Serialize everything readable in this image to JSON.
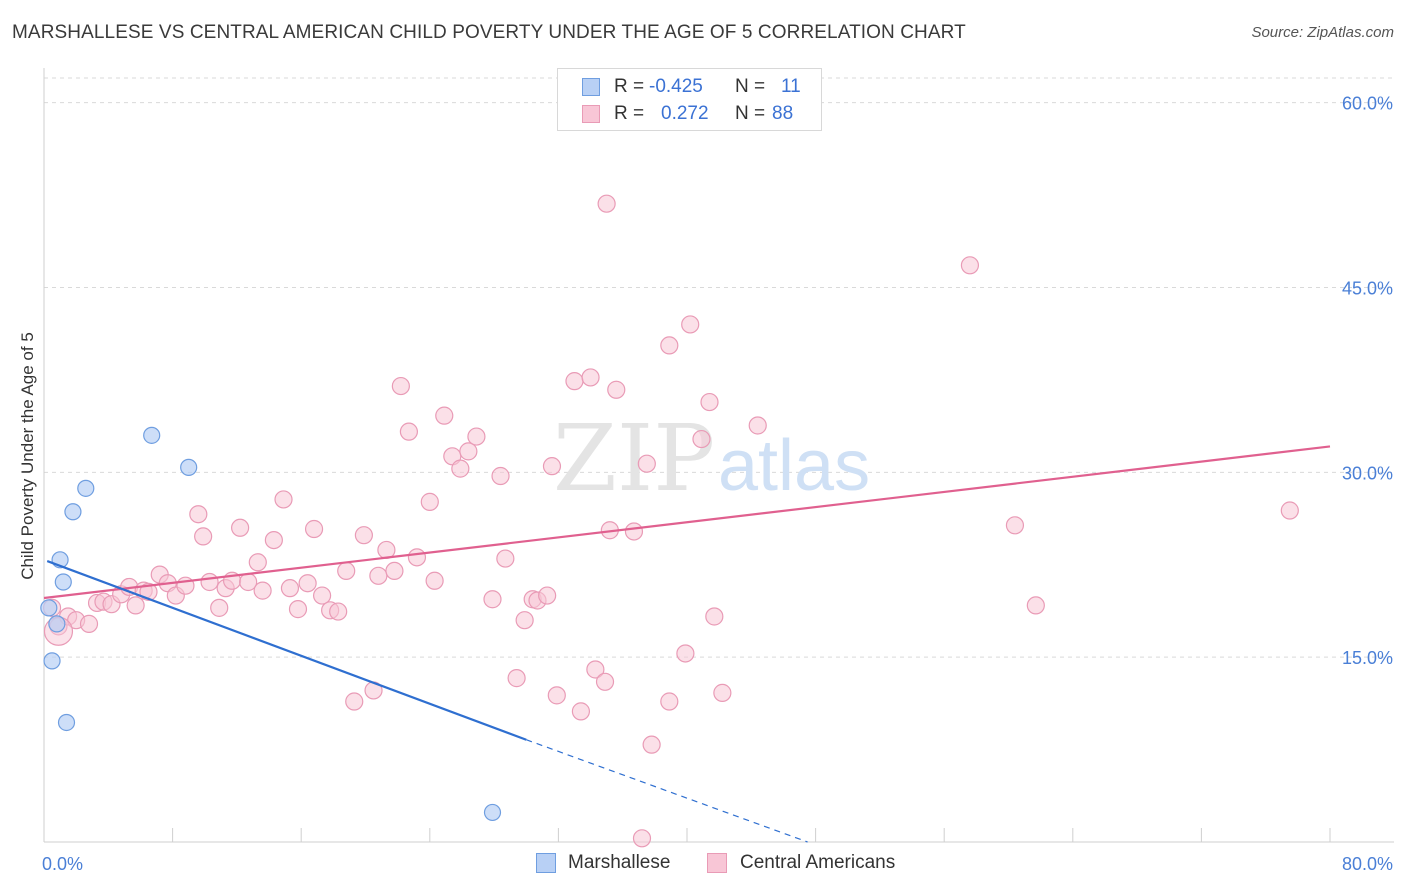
{
  "title": "MARSHALLESE VS CENTRAL AMERICAN CHILD POVERTY UNDER THE AGE OF 5 CORRELATION CHART",
  "source": "Source: ZipAtlas.com",
  "watermark": {
    "zip": "ZIP",
    "atlas": "atlas"
  },
  "legend": {
    "rows": [
      {
        "r_label": "R =",
        "r_value": "-0.425",
        "n_label": "N =",
        "n_value": "11"
      },
      {
        "r_label": "R =",
        "r_value": "0.272",
        "n_label": "N =",
        "n_value": "88"
      }
    ]
  },
  "colors": {
    "marshallese_fill": "#b8d0f5",
    "marshallese_stroke": "#6f9ee0",
    "marshallese_line": "#2f6fd0",
    "central_fill": "#f8c6d6",
    "central_stroke": "#e99bb6",
    "central_line": "#e0608f",
    "tick_text": "#4a7fd6",
    "grid": "#d9d9d9"
  },
  "chart_data": {
    "type": "scatter",
    "title": "MARSHALLESE VS CENTRAL AMERICAN CHILD POVERTY UNDER THE AGE OF 5 CORRELATION CHART",
    "xlabel": "",
    "ylabel": "Child Poverty Under the Age of 5",
    "xlim": [
      0,
      80
    ],
    "ylim": [
      0,
      62
    ],
    "x_tick_labels": [
      "0.0%",
      "80.0%"
    ],
    "y_ticks": [
      15,
      30,
      45,
      60
    ],
    "y_tick_labels": [
      "15.0%",
      "30.0%",
      "45.0%",
      "60.0%"
    ],
    "grid": "horizontal dashed",
    "legend_position": "bottom-center",
    "series": [
      {
        "name": "Marshallese",
        "stats": {
          "R": -0.425,
          "N": 11
        },
        "points": [
          [
            0.3,
            19.0
          ],
          [
            0.8,
            17.7
          ],
          [
            1.0,
            22.9
          ],
          [
            1.2,
            21.1
          ],
          [
            1.8,
            26.8
          ],
          [
            2.6,
            28.7
          ],
          [
            6.7,
            33.0
          ],
          [
            9.0,
            30.4
          ],
          [
            0.5,
            14.7
          ],
          [
            1.4,
            9.7
          ],
          [
            27.9,
            2.4
          ]
        ],
        "trend": {
          "x0": 0.2,
          "y0": 22.8,
          "x1": 30.0,
          "y1": 8.3,
          "dash_to_x": 47.5,
          "dash_to_y": 0.0
        }
      },
      {
        "name": "Central Americans",
        "stats": {
          "R": 0.272,
          "N": 88
        },
        "points": [
          [
            0.5,
            19.0
          ],
          [
            0.9,
            17.5
          ],
          [
            1.5,
            18.3
          ],
          [
            2.0,
            18.0
          ],
          [
            2.8,
            17.7
          ],
          [
            3.3,
            19.4
          ],
          [
            3.7,
            19.5
          ],
          [
            4.2,
            19.3
          ],
          [
            4.8,
            20.1
          ],
          [
            5.3,
            20.7
          ],
          [
            5.7,
            19.2
          ],
          [
            6.2,
            20.4
          ],
          [
            6.5,
            20.3
          ],
          [
            7.2,
            21.7
          ],
          [
            7.7,
            21.0
          ],
          [
            8.2,
            20.0
          ],
          [
            8.8,
            20.8
          ],
          [
            9.6,
            26.6
          ],
          [
            9.9,
            24.8
          ],
          [
            10.3,
            21.1
          ],
          [
            10.9,
            19.0
          ],
          [
            11.3,
            20.6
          ],
          [
            11.7,
            21.2
          ],
          [
            12.2,
            25.5
          ],
          [
            12.7,
            21.1
          ],
          [
            13.3,
            22.7
          ],
          [
            13.6,
            20.4
          ],
          [
            14.3,
            24.5
          ],
          [
            14.9,
            27.8
          ],
          [
            15.3,
            20.6
          ],
          [
            15.8,
            18.9
          ],
          [
            16.4,
            21.0
          ],
          [
            16.8,
            25.4
          ],
          [
            17.3,
            20.0
          ],
          [
            17.8,
            18.8
          ],
          [
            18.3,
            18.7
          ],
          [
            18.8,
            22.0
          ],
          [
            19.9,
            24.9
          ],
          [
            20.8,
            21.6
          ],
          [
            21.3,
            23.7
          ],
          [
            21.8,
            22.0
          ],
          [
            22.2,
            37.0
          ],
          [
            22.7,
            33.3
          ],
          [
            23.2,
            23.1
          ],
          [
            24.0,
            27.6
          ],
          [
            24.3,
            21.2
          ],
          [
            24.9,
            34.6
          ],
          [
            25.4,
            31.3
          ],
          [
            25.9,
            30.3
          ],
          [
            26.4,
            31.7
          ],
          [
            26.9,
            32.9
          ],
          [
            27.9,
            19.7
          ],
          [
            28.4,
            29.7
          ],
          [
            28.7,
            23.0
          ],
          [
            29.4,
            13.3
          ],
          [
            29.9,
            18.0
          ],
          [
            30.4,
            19.7
          ],
          [
            30.7,
            19.6
          ],
          [
            31.3,
            20.0
          ],
          [
            31.6,
            30.5
          ],
          [
            31.9,
            11.9
          ],
          [
            33.0,
            37.4
          ],
          [
            33.4,
            10.6
          ],
          [
            34.0,
            37.7
          ],
          [
            34.3,
            14.0
          ],
          [
            34.9,
            13.0
          ],
          [
            35.0,
            51.8
          ],
          [
            35.2,
            25.3
          ],
          [
            35.6,
            36.7
          ],
          [
            36.7,
            25.2
          ],
          [
            37.5,
            30.7
          ],
          [
            37.8,
            7.9
          ],
          [
            38.9,
            40.3
          ],
          [
            38.9,
            11.4
          ],
          [
            39.9,
            15.3
          ],
          [
            40.2,
            42.0
          ],
          [
            40.9,
            32.7
          ],
          [
            41.4,
            35.7
          ],
          [
            41.7,
            18.3
          ],
          [
            42.2,
            12.1
          ],
          [
            44.4,
            33.8
          ],
          [
            37.2,
            0.3
          ],
          [
            57.6,
            46.8
          ],
          [
            60.4,
            25.7
          ],
          [
            61.7,
            19.2
          ],
          [
            77.5,
            26.9
          ],
          [
            19.3,
            11.4
          ],
          [
            20.5,
            12.3
          ]
        ],
        "trend": {
          "x0": 0.0,
          "y0": 19.8,
          "x1": 80.0,
          "y1": 32.1
        }
      }
    ]
  }
}
